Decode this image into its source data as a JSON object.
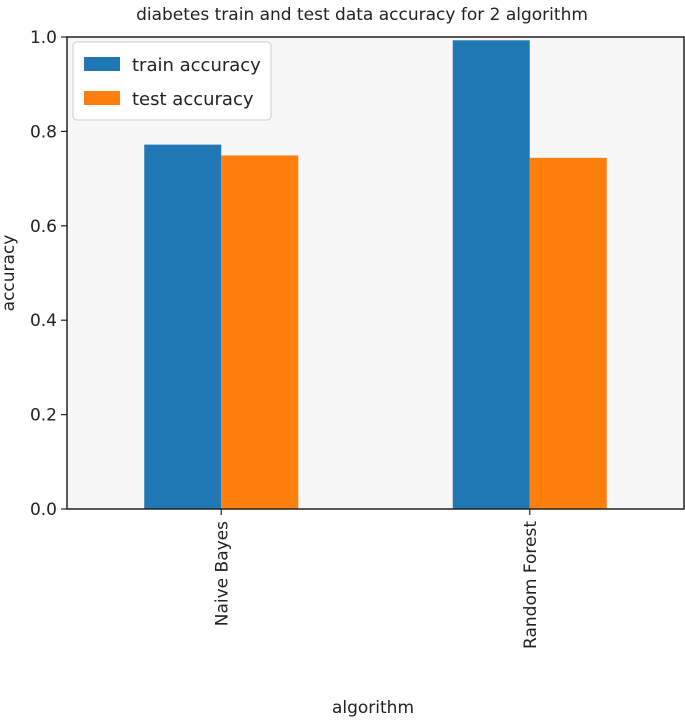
{
  "chart_data": {
    "type": "bar",
    "title": "diabetes train and test data accuracy for 2 algorithm",
    "xlabel": "algorithm",
    "ylabel": "accuracy",
    "categories": [
      "Naive Bayes",
      "Random Forest"
    ],
    "series": [
      {
        "name": "train accuracy",
        "values": [
          0.772,
          0.993
        ],
        "color": "#1f77b4"
      },
      {
        "name": "test accuracy",
        "values": [
          0.749,
          0.744
        ],
        "color": "#ff7f0e"
      }
    ],
    "ylim": [
      0,
      1.0
    ],
    "yticks": [
      "0.0",
      "0.2",
      "0.4",
      "0.6",
      "0.8",
      "1.0"
    ],
    "grid": false,
    "legend_position": "top-left",
    "plot_background": "#f7f7f7"
  }
}
